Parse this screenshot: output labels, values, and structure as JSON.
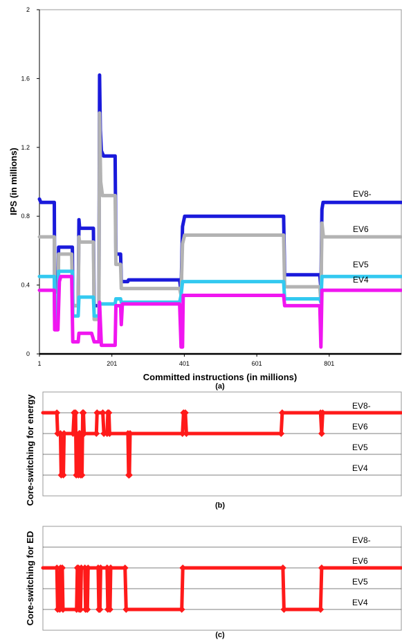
{
  "chart_data": [
    {
      "type": "line",
      "xlabel": "Committed instructions (in millions)",
      "ylabel": "IPS (in millions)",
      "caption": "(a)",
      "xlim": [
        1,
        1000
      ],
      "ylim": [
        0,
        2
      ],
      "x_ticks": [
        "1",
        "201",
        "401",
        "601",
        "801"
      ],
      "y_ticks": [
        "0",
        "0.4",
        "0.8",
        "1.2",
        "1.6",
        "2"
      ],
      "series": [
        {
          "name": "EV8-",
          "color": "#1a1adb",
          "points": [
            [
              1,
              0.9
            ],
            [
              5,
              0.88
            ],
            [
              42,
              0.88
            ],
            [
              43,
              0.36
            ],
            [
              52,
              0.36
            ],
            [
              54,
              0.62
            ],
            [
              92,
              0.62
            ],
            [
              93,
              0.28
            ],
            [
              108,
              0.28
            ],
            [
              110,
              0.78
            ],
            [
              112,
              0.73
            ],
            [
              150,
              0.73
            ],
            [
              152,
              0.28
            ],
            [
              165,
              0.28
            ],
            [
              167,
              1.62
            ],
            [
              169,
              1.3
            ],
            [
              172,
              1.18
            ],
            [
              178,
              1.15
            ],
            [
              210,
              1.15
            ],
            [
              212,
              0.58
            ],
            [
              225,
              0.58
            ],
            [
              227,
              0.42
            ],
            [
              245,
              0.42
            ],
            [
              247,
              0.43
            ],
            [
              388,
              0.43
            ],
            [
              392,
              0.36
            ],
            [
              396,
              0.74
            ],
            [
              402,
              0.8
            ],
            [
              675,
              0.8
            ],
            [
              678,
              0.46
            ],
            [
              775,
              0.46
            ],
            [
              778,
              0.38
            ],
            [
              781,
              0.84
            ],
            [
              784,
              0.88
            ],
            [
              1000,
              0.88
            ]
          ]
        },
        {
          "name": "EV6",
          "color": "#b3b3b3",
          "points": [
            [
              1,
              0.68
            ],
            [
              42,
              0.68
            ],
            [
              43,
              0.2
            ],
            [
              52,
              0.2
            ],
            [
              54,
              0.58
            ],
            [
              90,
              0.58
            ],
            [
              93,
              0.28
            ],
            [
              108,
              0.28
            ],
            [
              110,
              0.68
            ],
            [
              112,
              0.65
            ],
            [
              150,
              0.65
            ],
            [
              152,
              0.2
            ],
            [
              165,
              0.2
            ],
            [
              167,
              1.4
            ],
            [
              170,
              1.0
            ],
            [
              175,
              0.92
            ],
            [
              210,
              0.92
            ],
            [
              212,
              0.52
            ],
            [
              225,
              0.52
            ],
            [
              227,
              0.38
            ],
            [
              388,
              0.38
            ],
            [
              392,
              0.34
            ],
            [
              396,
              0.64
            ],
            [
              402,
              0.69
            ],
            [
              675,
              0.69
            ],
            [
              678,
              0.39
            ],
            [
              775,
              0.39
            ],
            [
              778,
              0.3
            ],
            [
              781,
              0.76
            ],
            [
              785,
              0.68
            ],
            [
              1000,
              0.68
            ]
          ]
        },
        {
          "name": "EV5",
          "color": "#33c9f0",
          "points": [
            [
              1,
              0.45
            ],
            [
              42,
              0.45
            ],
            [
              43,
              0.18
            ],
            [
              52,
              0.18
            ],
            [
              54,
              0.48
            ],
            [
              92,
              0.48
            ],
            [
              93,
              0.22
            ],
            [
              108,
              0.22
            ],
            [
              110,
              0.33
            ],
            [
              150,
              0.33
            ],
            [
              152,
              0.22
            ],
            [
              165,
              0.22
            ],
            [
              167,
              0.29
            ],
            [
              210,
              0.29
            ],
            [
              212,
              0.32
            ],
            [
              225,
              0.32
            ],
            [
              227,
              0.3
            ],
            [
              388,
              0.3
            ],
            [
              392,
              0.34
            ],
            [
              396,
              0.42
            ],
            [
              675,
              0.42
            ],
            [
              678,
              0.32
            ],
            [
              775,
              0.32
            ],
            [
              778,
              0.3
            ],
            [
              781,
              0.45
            ],
            [
              1000,
              0.45
            ]
          ]
        },
        {
          "name": "EV4",
          "color": "#f016f0",
          "points": [
            [
              1,
              0.37
            ],
            [
              42,
              0.37
            ],
            [
              43,
              0.14
            ],
            [
              52,
              0.14
            ],
            [
              56,
              0.42
            ],
            [
              60,
              0.45
            ],
            [
              90,
              0.45
            ],
            [
              93,
              0.07
            ],
            [
              108,
              0.07
            ],
            [
              110,
              0.12
            ],
            [
              145,
              0.12
            ],
            [
              152,
              0.07
            ],
            [
              165,
              0.07
            ],
            [
              167,
              0.3
            ],
            [
              172,
              0.05
            ],
            [
              210,
              0.05
            ],
            [
              212,
              0.28
            ],
            [
              225,
              0.28
            ],
            [
              227,
              0.17
            ],
            [
              230,
              0.29
            ],
            [
              388,
              0.29
            ],
            [
              392,
              0.04
            ],
            [
              396,
              0.04
            ],
            [
              398,
              0.34
            ],
            [
              675,
              0.34
            ],
            [
              678,
              0.28
            ],
            [
              775,
              0.28
            ],
            [
              778,
              0.04
            ],
            [
              781,
              0.37
            ],
            [
              1000,
              0.37
            ]
          ]
        }
      ]
    },
    {
      "type": "line",
      "ylabel": "Core-switching for energy",
      "caption": "(b)",
      "levels": [
        "EV8-",
        "EV6",
        "EV5",
        "EV4"
      ],
      "color": "#ff1a1a",
      "points": [
        [
          1,
          "EV8-"
        ],
        [
          40,
          "EV8-"
        ],
        [
          42,
          "EV6"
        ],
        [
          50,
          "EV6"
        ],
        [
          52,
          "EV4"
        ],
        [
          58,
          "EV4"
        ],
        [
          60,
          "EV6"
        ],
        [
          85,
          "EV6"
        ],
        [
          88,
          "EV8-"
        ],
        [
          92,
          "EV8-"
        ],
        [
          94,
          "EV4"
        ],
        [
          100,
          "EV4"
        ],
        [
          102,
          "EV6"
        ],
        [
          104,
          "EV6"
        ],
        [
          106,
          "EV4"
        ],
        [
          110,
          "EV4"
        ],
        [
          112,
          "EV8-"
        ],
        [
          114,
          "EV8-"
        ],
        [
          116,
          "EV6"
        ],
        [
          150,
          "EV6"
        ],
        [
          152,
          "EV8-"
        ],
        [
          168,
          "EV8-"
        ],
        [
          171,
          "EV6"
        ],
        [
          180,
          "EV6"
        ],
        [
          182,
          "EV8-"
        ],
        [
          185,
          "EV8-"
        ],
        [
          187,
          "EV6"
        ],
        [
          238,
          "EV6"
        ],
        [
          240,
          "EV4"
        ],
        [
          242,
          "EV4"
        ],
        [
          244,
          "EV6"
        ],
        [
          390,
          "EV6"
        ],
        [
          393,
          "EV8-"
        ],
        [
          398,
          "EV8-"
        ],
        [
          401,
          "EV6"
        ],
        [
          665,
          "EV6"
        ],
        [
          668,
          "EV8-"
        ],
        [
          775,
          "EV8-"
        ],
        [
          778,
          "EV6"
        ],
        [
          781,
          "EV8-"
        ],
        [
          1000,
          "EV8-"
        ]
      ]
    },
    {
      "type": "line",
      "ylabel": "Core-switching for ED",
      "caption": "(c)",
      "levels": [
        "EV8-",
        "EV6",
        "EV5",
        "EV4"
      ],
      "color": "#ff1a1a",
      "points": [
        [
          1,
          "EV6"
        ],
        [
          40,
          "EV6"
        ],
        [
          42,
          "EV4"
        ],
        [
          48,
          "EV4"
        ],
        [
          50,
          "EV6"
        ],
        [
          55,
          "EV6"
        ],
        [
          57,
          "EV4"
        ],
        [
          95,
          "EV4"
        ],
        [
          97,
          "EV6"
        ],
        [
          100,
          "EV6"
        ],
        [
          102,
          "EV4"
        ],
        [
          106,
          "EV4"
        ],
        [
          108,
          "EV6"
        ],
        [
          118,
          "EV6"
        ],
        [
          120,
          "EV4"
        ],
        [
          125,
          "EV4"
        ],
        [
          127,
          "EV6"
        ],
        [
          155,
          "EV6"
        ],
        [
          157,
          "EV4"
        ],
        [
          160,
          "EV4"
        ],
        [
          162,
          "EV6"
        ],
        [
          180,
          "EV6"
        ],
        [
          182,
          "EV4"
        ],
        [
          188,
          "EV4"
        ],
        [
          190,
          "EV6"
        ],
        [
          230,
          "EV6"
        ],
        [
          233,
          "EV4"
        ],
        [
          388,
          "EV4"
        ],
        [
          391,
          "EV6"
        ],
        [
          670,
          "EV6"
        ],
        [
          673,
          "EV4"
        ],
        [
          775,
          "EV4"
        ],
        [
          778,
          "EV6"
        ],
        [
          1000,
          "EV6"
        ]
      ]
    }
  ]
}
